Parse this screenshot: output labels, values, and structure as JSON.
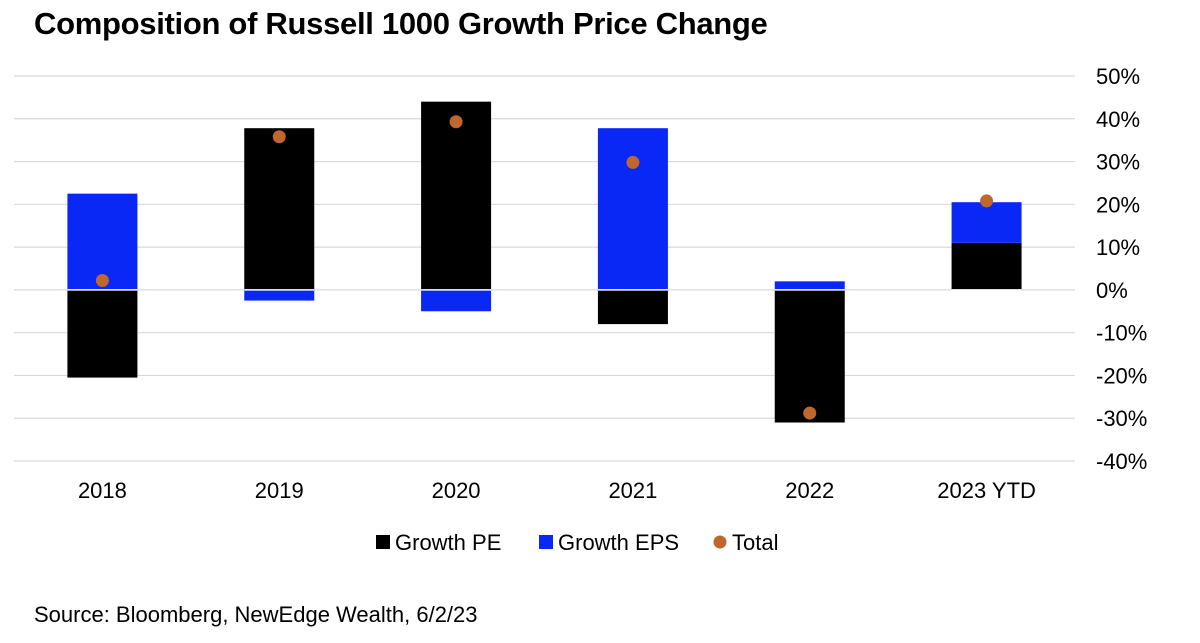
{
  "title": "Composition of Russell 1000 Growth Price Change",
  "source": "Source: Bloomberg, NewEdge Wealth, 6/2/23",
  "colors": {
    "pe": "#000000",
    "eps": "#0a28f5",
    "total": "#c0672e",
    "grid": "#d9d9d9"
  },
  "chart_data": {
    "type": "bar",
    "stacked": true,
    "title": "Composition of Russell 1000 Growth Price Change",
    "categories": [
      "2018",
      "2019",
      "2020",
      "2021",
      "2022",
      "2023 YTD"
    ],
    "series": [
      {
        "name": "Growth PE",
        "kind": "bar",
        "values": [
          -20.5,
          37.8,
          44.0,
          -8.0,
          -31.0,
          11.0
        ]
      },
      {
        "name": "Growth EPS",
        "kind": "bar",
        "values": [
          22.5,
          -2.5,
          -5.0,
          37.8,
          2.0,
          9.5
        ]
      },
      {
        "name": "Total",
        "kind": "scatter",
        "values": [
          2.2,
          35.8,
          39.3,
          29.8,
          -28.8,
          20.8
        ]
      }
    ],
    "ylim": [
      -40,
      50
    ],
    "yticks": [
      50,
      40,
      30,
      20,
      10,
      0,
      -10,
      -20,
      -30,
      -40
    ],
    "ytick_labels": [
      "50%",
      "40%",
      "30%",
      "20%",
      "10%",
      "0%",
      "-10%",
      "-20%",
      "-30%",
      "-40%"
    ],
    "grid": true,
    "legend_position": "bottom",
    "xlabel": "",
    "ylabel": ""
  }
}
